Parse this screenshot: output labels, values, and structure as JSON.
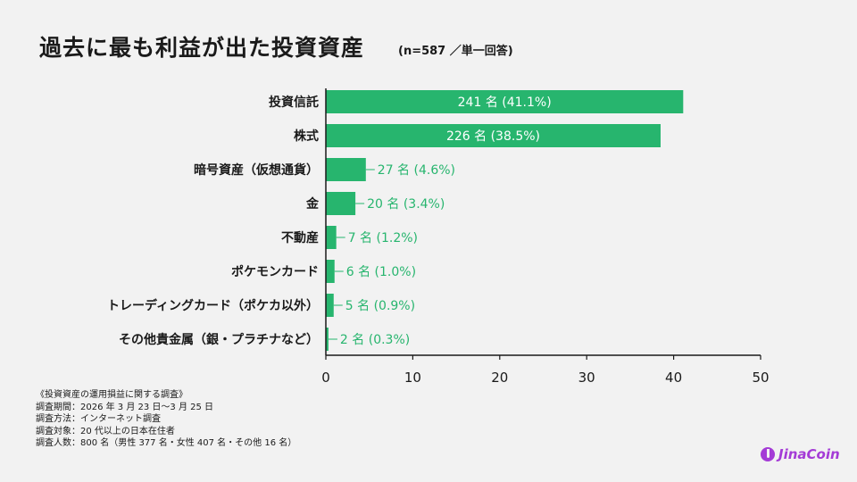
{
  "chart_data": {
    "type": "bar",
    "orientation": "horizontal",
    "title": "過去に最も利益が出た投資資産",
    "subtitle": "(n=587 ／単一回答)",
    "categories": [
      "投資信託",
      "株式",
      "暗号資産（仮想通貨）",
      "金",
      "不動産",
      "ポケモンカード",
      "トレーディングカード（ポケカ以外）",
      "その他貴金属（銀・プラチナなど）"
    ],
    "values": [
      41.1,
      38.5,
      4.6,
      3.4,
      1.2,
      1.0,
      0.9,
      0.3
    ],
    "data_labels": [
      "241 名 (41.1%)",
      "226 名 (38.5%)",
      "27 名 (4.6%)",
      "20 名 (3.4%)",
      "7 名 (1.2%)",
      "6 名 (1.0%)",
      "5 名 (0.9%)",
      "2 名 (0.3%)"
    ],
    "xlim": [
      0,
      50
    ],
    "xticks": [
      "0",
      "10",
      "20",
      "30",
      "40",
      "50"
    ],
    "grid": false,
    "bar_color": "#27b56e",
    "label_color_outside": "#27b56e"
  },
  "notes": [
    "《投資資産の運用損益に関する調査》",
    "調査期間：2026 年 3 月 23 日〜3 月 25 日",
    "調査方法：インターネット調査",
    "調査対象：20 代以上の日本在住者",
    "調査人数：800 名（男性 377 名・女性 407 名・その他 16 名）"
  ],
  "logo": {
    "text": "JinaCoin",
    "color": "#a43bd6"
  }
}
